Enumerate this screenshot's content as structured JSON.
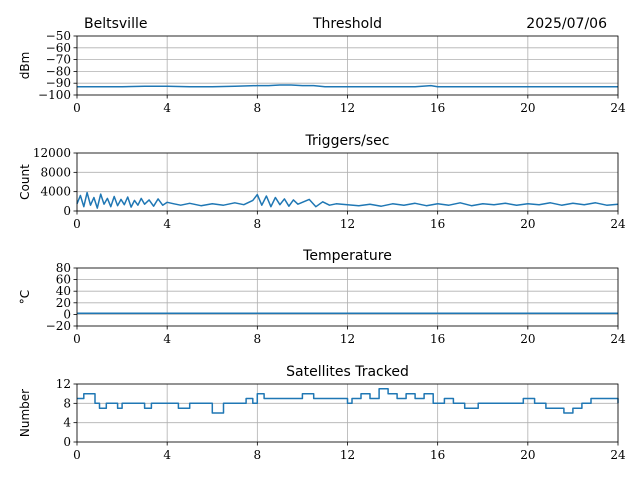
{
  "header": {
    "location": "Beltsville",
    "date": "2025/07/06"
  },
  "colors": {
    "series": "#1f77b4",
    "grid": "#b0b0b0"
  },
  "chart_data": [
    {
      "type": "line",
      "title": "Threshold",
      "ylabel": "dBm",
      "xlim": [
        0,
        24
      ],
      "ylim": [
        -100,
        -50
      ],
      "xticks": [
        0,
        4,
        8,
        12,
        16,
        20,
        24
      ],
      "yticks": [
        -100,
        -90,
        -80,
        -70,
        -60,
        -50
      ],
      "grid": true,
      "series": [
        {
          "x": [
            0,
            2,
            3,
            4,
            5,
            6,
            7,
            8,
            8.5,
            9,
            9.5,
            10,
            10.5,
            11,
            12,
            13,
            14,
            15,
            15.7,
            16,
            18,
            20,
            22,
            24
          ],
          "y": [
            -93,
            -93,
            -92.5,
            -92.5,
            -93,
            -93,
            -92.5,
            -92,
            -92,
            -91.5,
            -91.5,
            -92,
            -92,
            -93,
            -93,
            -93,
            -93,
            -93,
            -92,
            -93,
            -93,
            -93,
            -93,
            -93
          ]
        }
      ]
    },
    {
      "type": "line",
      "title": "Triggers/sec",
      "ylabel": "Count",
      "xlim": [
        0,
        24
      ],
      "ylim": [
        0,
        12000
      ],
      "xticks": [
        0,
        4,
        8,
        12,
        16,
        20,
        24
      ],
      "yticks": [
        0,
        4000,
        8000,
        12000
      ],
      "grid": true,
      "series": [
        {
          "x": [
            0,
            0.15,
            0.3,
            0.45,
            0.6,
            0.75,
            0.9,
            1.05,
            1.2,
            1.35,
            1.5,
            1.65,
            1.8,
            1.95,
            2.1,
            2.25,
            2.4,
            2.55,
            2.7,
            2.85,
            3,
            3.2,
            3.4,
            3.6,
            3.8,
            4,
            4.3,
            4.6,
            5,
            5.5,
            6,
            6.5,
            7,
            7.4,
            7.8,
            8,
            8.2,
            8.4,
            8.6,
            8.8,
            9,
            9.2,
            9.4,
            9.6,
            9.8,
            10,
            10.3,
            10.6,
            10.9,
            11.2,
            11.5,
            12,
            12.5,
            13,
            13.5,
            14,
            14.5,
            15,
            15.5,
            16,
            16.5,
            17,
            17.5,
            18,
            18.5,
            19,
            19.5,
            20,
            20.5,
            21,
            21.5,
            22,
            22.5,
            23,
            23.5,
            24
          ],
          "y": [
            1500,
            3200,
            900,
            3800,
            1200,
            2800,
            600,
            3500,
            1400,
            2600,
            900,
            3000,
            1100,
            2400,
            1300,
            2900,
            800,
            2200,
            1200,
            2600,
            1400,
            2300,
            1000,
            2500,
            1200,
            1800,
            1500,
            1200,
            1600,
            1100,
            1500,
            1200,
            1700,
            1300,
            2200,
            3400,
            1200,
            3100,
            900,
            2800,
            1300,
            2500,
            1000,
            2300,
            1400,
            1800,
            2400,
            900,
            1900,
            1200,
            1500,
            1300,
            1100,
            1400,
            1000,
            1500,
            1200,
            1600,
            1100,
            1500,
            1200,
            1700,
            1100,
            1500,
            1300,
            1600,
            1200,
            1500,
            1300,
            1700,
            1200,
            1600,
            1300,
            1700,
            1200,
            1400
          ]
        }
      ]
    },
    {
      "type": "line",
      "title": "Temperature",
      "ylabel": "°C",
      "xlim": [
        0,
        24
      ],
      "ylim": [
        -20,
        80
      ],
      "xticks": [
        0,
        4,
        8,
        12,
        16,
        20,
        24
      ],
      "yticks": [
        -20,
        0,
        20,
        40,
        60,
        80
      ],
      "grid": true,
      "series": [
        {
          "x": [
            0,
            24
          ],
          "y": [
            2,
            2
          ]
        }
      ]
    },
    {
      "type": "line",
      "title": "Satellites Tracked",
      "ylabel": "Number",
      "xlim": [
        0,
        24
      ],
      "ylim": [
        0,
        12
      ],
      "xticks": [
        0,
        4,
        8,
        12,
        16,
        20,
        24
      ],
      "yticks": [
        0,
        4,
        8,
        12
      ],
      "grid": true,
      "series": [
        {
          "step": true,
          "x": [
            0,
            0.3,
            0.8,
            1.0,
            1.3,
            1.6,
            1.8,
            2.0,
            2.5,
            3.0,
            3.3,
            3.6,
            4.0,
            4.5,
            5.0,
            5.5,
            6.0,
            6.5,
            7.0,
            7.5,
            7.8,
            8.0,
            8.3,
            8.8,
            9.3,
            10.0,
            10.5,
            11.0,
            11.5,
            12.0,
            12.2,
            12.6,
            13.0,
            13.4,
            13.8,
            14.2,
            14.6,
            15.0,
            15.4,
            15.8,
            16.3,
            16.7,
            17.2,
            17.8,
            18.3,
            18.8,
            19.3,
            19.8,
            20.3,
            20.8,
            21.2,
            21.6,
            22.0,
            22.4,
            22.8,
            23.2,
            23.6,
            24.0
          ],
          "y": [
            9,
            10,
            8,
            7,
            8,
            8,
            7,
            8,
            8,
            7,
            8,
            8,
            8,
            7,
            8,
            8,
            6,
            8,
            8,
            9,
            8,
            10,
            9,
            9,
            9,
            10,
            9,
            9,
            9,
            8,
            9,
            10,
            9,
            11,
            10,
            9,
            10,
            9,
            10,
            8,
            9,
            8,
            7,
            8,
            8,
            8,
            8,
            9,
            8,
            7,
            7,
            6,
            7,
            8,
            9,
            9,
            9,
            8
          ]
        }
      ]
    }
  ]
}
